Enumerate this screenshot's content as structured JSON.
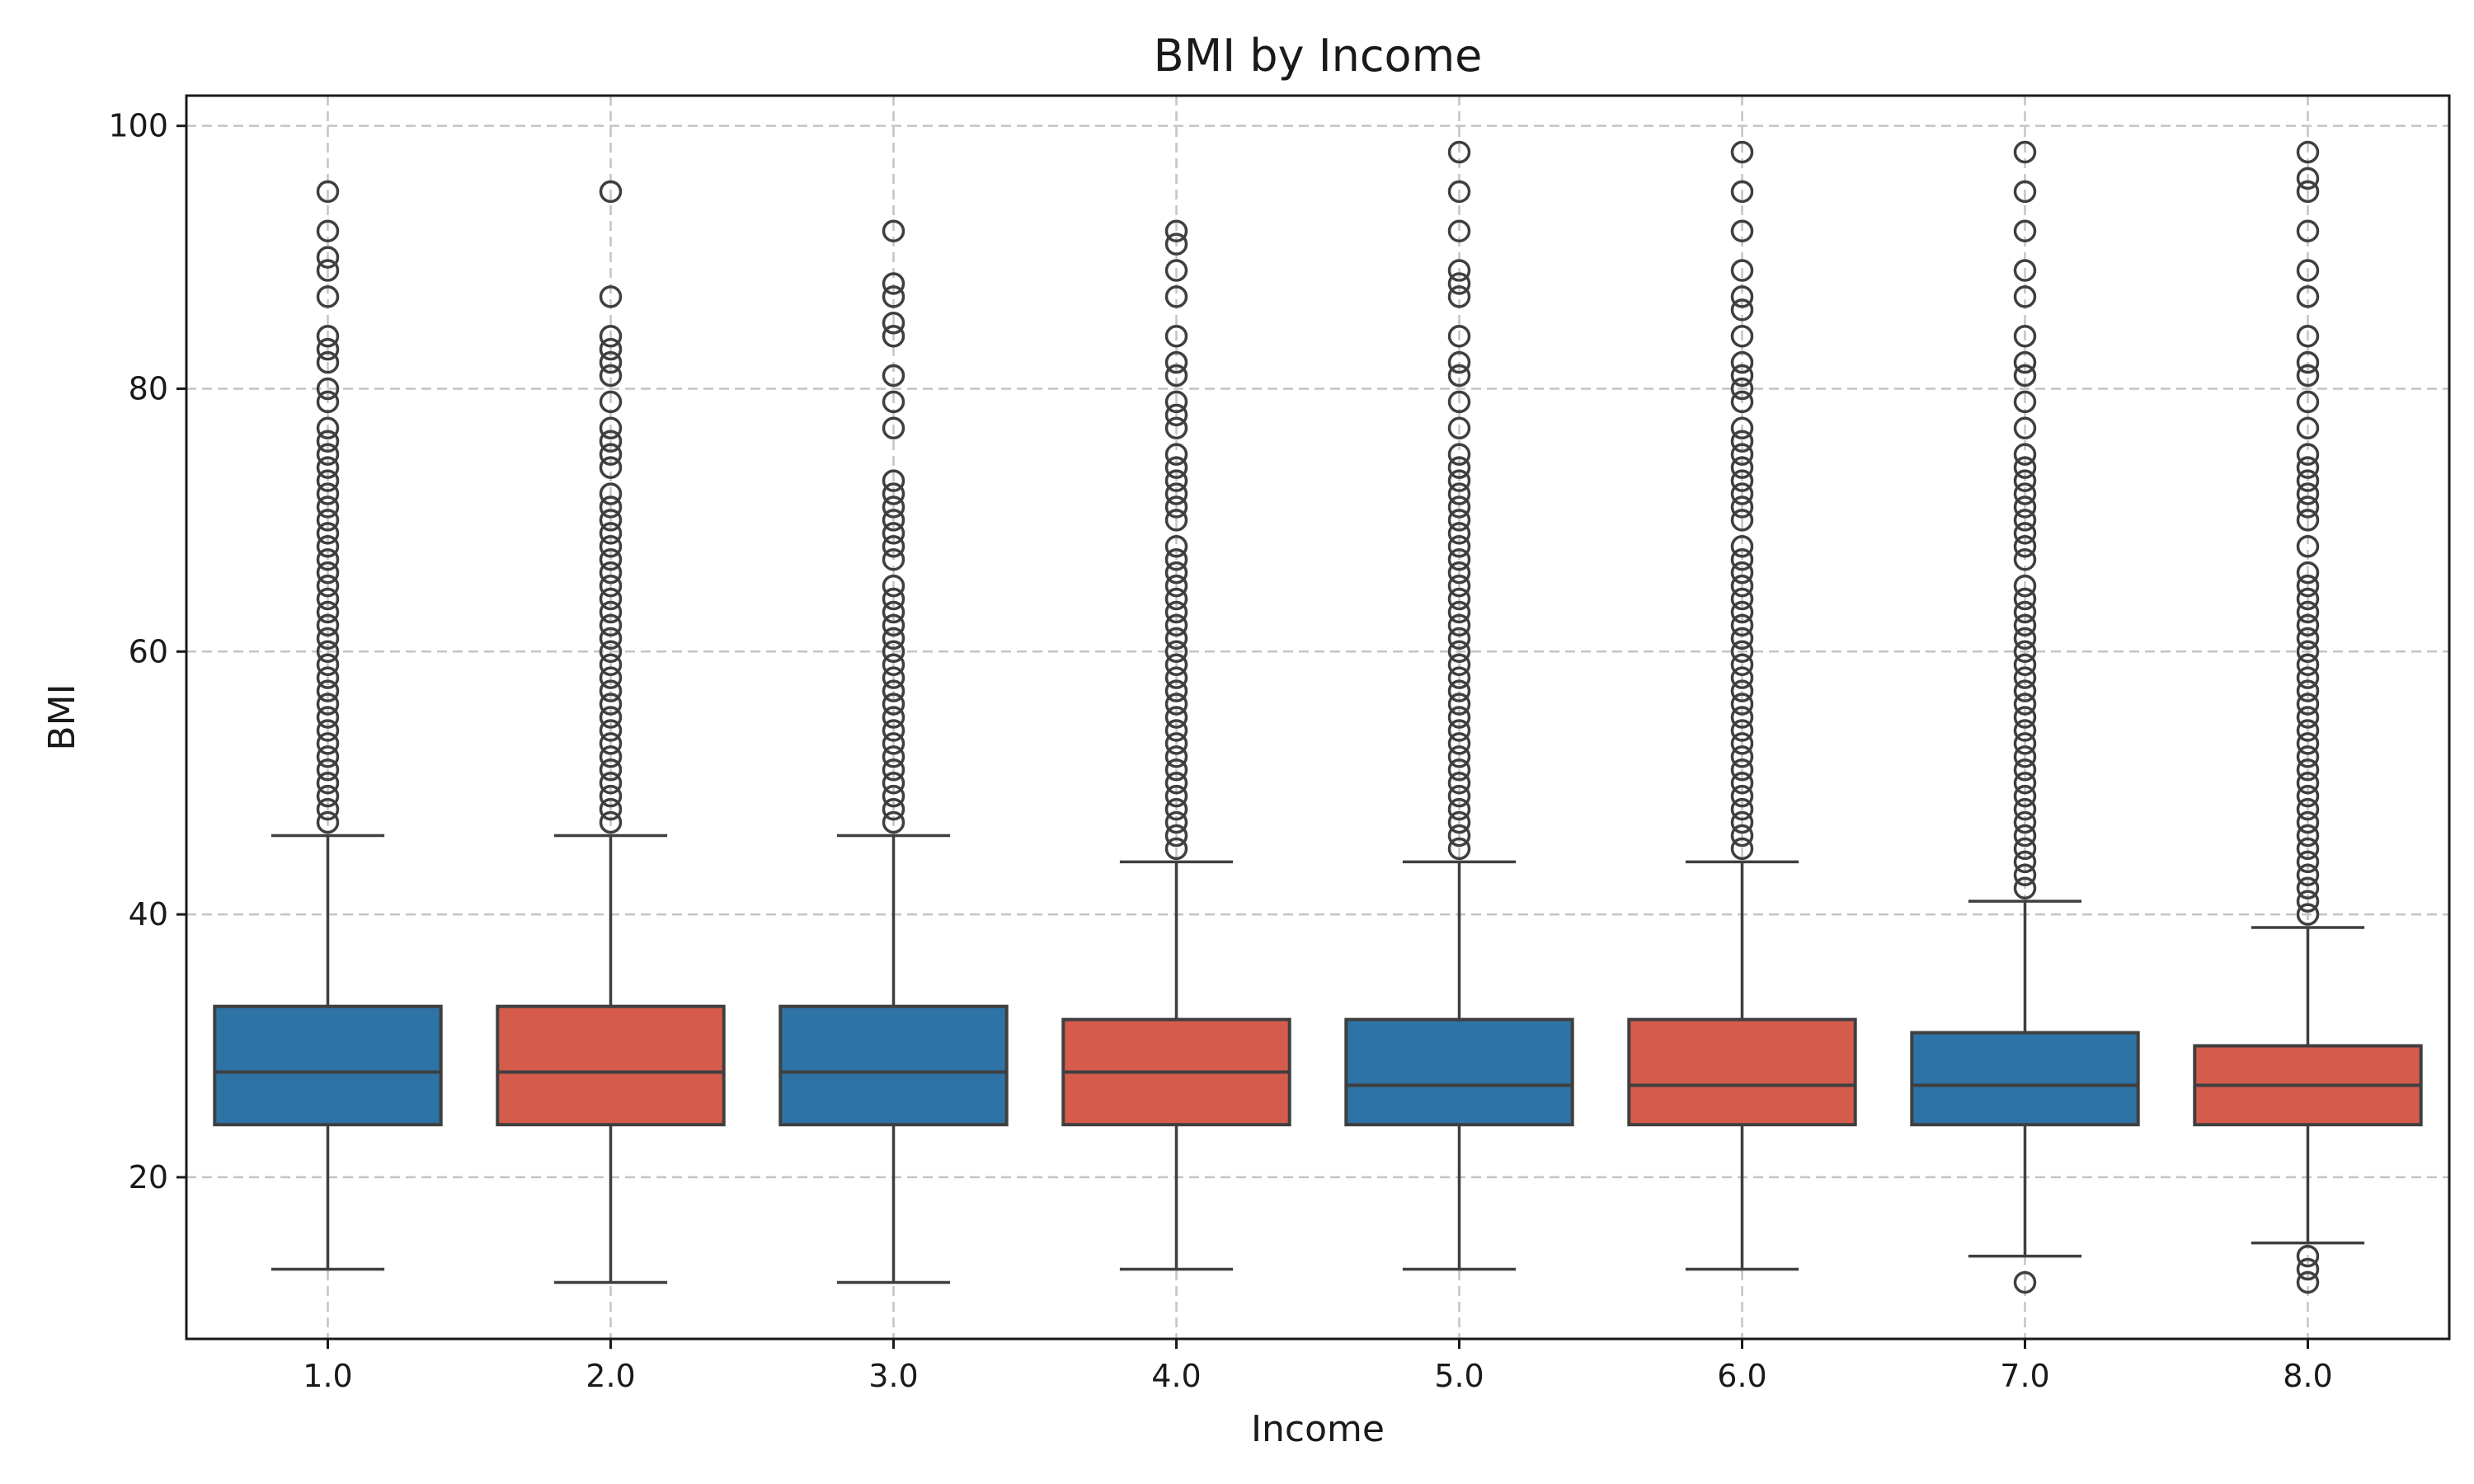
{
  "chart_data": {
    "type": "box",
    "title": "BMI by Income",
    "xlabel": "Income",
    "ylabel": "BMI",
    "ylim": [
      7.7,
      102.3
    ],
    "yticks": [
      20,
      40,
      60,
      80,
      100
    ],
    "grid": true,
    "colors": [
      "#2e73a5",
      "#d55c4d"
    ],
    "categories": [
      "1.0",
      "2.0",
      "3.0",
      "4.0",
      "5.0",
      "6.0",
      "7.0",
      "8.0"
    ],
    "boxes": [
      {
        "category": "1.0",
        "whisker_low": 13,
        "q1": 24,
        "median": 28,
        "q3": 33,
        "whisker_high": 46,
        "outliers": [
          47,
          48,
          49,
          50,
          51,
          52,
          53,
          54,
          55,
          56,
          57,
          58,
          59,
          60,
          61,
          62,
          63,
          64,
          65,
          66,
          67,
          68,
          69,
          70,
          71,
          72,
          73,
          74,
          75,
          76,
          77,
          79,
          80,
          82,
          83,
          84,
          87,
          89,
          90,
          92,
          95
        ]
      },
      {
        "category": "2.0",
        "whisker_low": 12,
        "q1": 24,
        "median": 28,
        "q3": 33,
        "whisker_high": 46,
        "outliers": [
          47,
          48,
          49,
          50,
          51,
          52,
          53,
          54,
          55,
          56,
          57,
          58,
          59,
          60,
          61,
          62,
          63,
          64,
          65,
          66,
          67,
          68,
          69,
          70,
          71,
          72,
          74,
          75,
          76,
          77,
          79,
          81,
          82,
          83,
          84,
          87,
          95
        ]
      },
      {
        "category": "3.0",
        "whisker_low": 12,
        "q1": 24,
        "median": 28,
        "q3": 33,
        "whisker_high": 46,
        "outliers": [
          47,
          48,
          49,
          50,
          51,
          52,
          53,
          54,
          55,
          56,
          57,
          58,
          59,
          60,
          61,
          62,
          63,
          64,
          65,
          67,
          68,
          69,
          70,
          71,
          72,
          73,
          77,
          79,
          81,
          84,
          85,
          87,
          88,
          92
        ]
      },
      {
        "category": "4.0",
        "whisker_low": 13,
        "q1": 24,
        "median": 28,
        "q3": 32,
        "whisker_high": 44,
        "outliers": [
          45,
          46,
          47,
          48,
          49,
          50,
          51,
          52,
          53,
          54,
          55,
          56,
          57,
          58,
          59,
          60,
          61,
          62,
          63,
          64,
          65,
          66,
          67,
          68,
          70,
          71,
          72,
          73,
          74,
          75,
          77,
          78,
          79,
          81,
          82,
          84,
          87,
          89,
          91,
          92
        ]
      },
      {
        "category": "5.0",
        "whisker_low": 13,
        "q1": 24,
        "median": 27,
        "q3": 32,
        "whisker_high": 44,
        "outliers": [
          45,
          46,
          47,
          48,
          49,
          50,
          51,
          52,
          53,
          54,
          55,
          56,
          57,
          58,
          59,
          60,
          61,
          62,
          63,
          64,
          65,
          66,
          67,
          68,
          69,
          70,
          71,
          72,
          73,
          74,
          75,
          77,
          79,
          81,
          82,
          84,
          87,
          88,
          89,
          92,
          95,
          98
        ]
      },
      {
        "category": "6.0",
        "whisker_low": 13,
        "q1": 24,
        "median": 27,
        "q3": 32,
        "whisker_high": 44,
        "outliers": [
          45,
          46,
          47,
          48,
          49,
          50,
          51,
          52,
          53,
          54,
          55,
          56,
          57,
          58,
          59,
          60,
          61,
          62,
          63,
          64,
          65,
          66,
          67,
          68,
          70,
          71,
          72,
          73,
          74,
          75,
          76,
          77,
          79,
          80,
          81,
          82,
          84,
          86,
          87,
          89,
          92,
          95,
          98
        ]
      },
      {
        "category": "7.0",
        "whisker_low": 14,
        "q1": 24,
        "median": 27,
        "q3": 31,
        "whisker_high": 41,
        "outliers": [
          12,
          42,
          43,
          44,
          45,
          46,
          47,
          48,
          49,
          50,
          51,
          52,
          53,
          54,
          55,
          56,
          57,
          58,
          59,
          60,
          61,
          62,
          63,
          64,
          65,
          67,
          68,
          69,
          70,
          71,
          72,
          73,
          74,
          75,
          77,
          79,
          81,
          82,
          84,
          87,
          89,
          92,
          95,
          98
        ]
      },
      {
        "category": "8.0",
        "whisker_low": 15,
        "q1": 24,
        "median": 27,
        "q3": 30,
        "whisker_high": 39,
        "outliers": [
          12,
          13,
          14,
          40,
          41,
          42,
          43,
          44,
          45,
          46,
          47,
          48,
          49,
          50,
          51,
          52,
          53,
          54,
          55,
          56,
          57,
          58,
          59,
          60,
          61,
          62,
          63,
          64,
          65,
          66,
          68,
          70,
          71,
          72,
          73,
          74,
          75,
          77,
          79,
          81,
          82,
          84,
          87,
          89,
          92,
          95,
          96,
          98
        ]
      }
    ]
  }
}
